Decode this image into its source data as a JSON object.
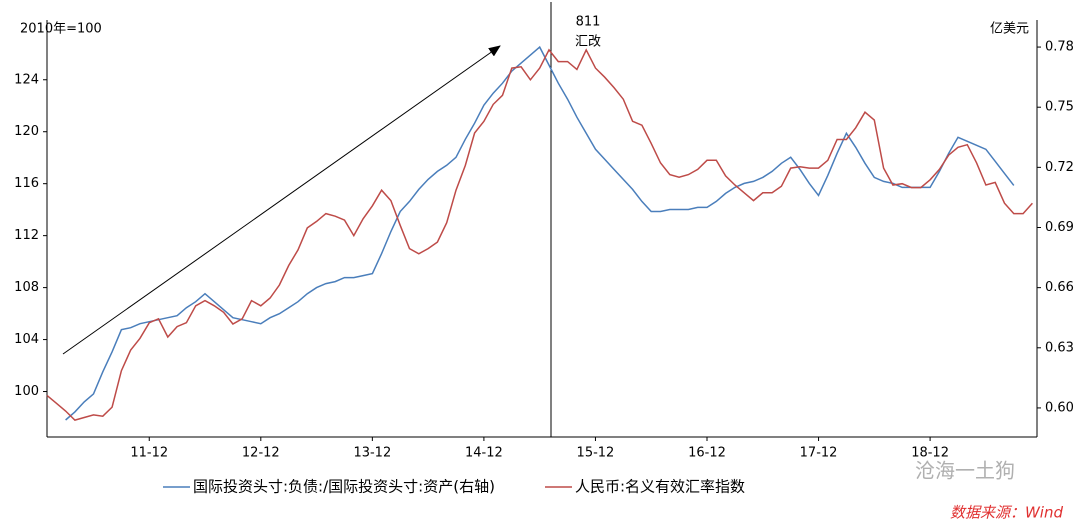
{
  "chart_data": {
    "type": "line",
    "y_label": "2010年=100",
    "y2_label": "亿美元",
    "annotation": {
      "text": "811",
      "subtext": "汇改"
    },
    "categories": [
      null,
      null,
      null,
      null,
      null,
      null,
      null,
      null,
      null,
      null,
      null,
      "11-12",
      null,
      null,
      null,
      null,
      null,
      null,
      null,
      null,
      null,
      null,
      null,
      "12-12",
      null,
      null,
      null,
      null,
      null,
      null,
      null,
      null,
      null,
      null,
      null,
      "13-12",
      null,
      null,
      null,
      null,
      null,
      null,
      null,
      null,
      null,
      null,
      null,
      "14-12",
      null,
      null,
      null,
      null,
      null,
      null,
      null,
      null,
      null,
      null,
      null,
      "15-12",
      null,
      null,
      null,
      null,
      null,
      null,
      null,
      null,
      null,
      null,
      null,
      "16-12",
      null,
      null,
      null,
      null,
      null,
      null,
      null,
      null,
      null,
      null,
      null,
      "17-12",
      null,
      null,
      null,
      null,
      null,
      null,
      null,
      null,
      null,
      null,
      null,
      "18-12",
      null,
      null,
      null,
      null,
      null,
      null,
      null,
      null,
      null,
      null,
      null
    ],
    "series": [
      {
        "name": "国际投资头寸:负债:/国际投资头寸:资产(右轴)",
        "color": "#4a7ebb",
        "axis": "y2",
        "values": [
          null,
          null,
          0.594,
          0.598,
          0.603,
          0.607,
          0.618,
          0.628,
          0.639,
          0.64,
          0.642,
          0.643,
          0.644,
          0.645,
          0.646,
          0.65,
          0.653,
          0.657,
          0.653,
          0.649,
          0.645,
          0.644,
          0.643,
          0.642,
          0.645,
          0.647,
          0.65,
          0.653,
          0.657,
          0.66,
          0.662,
          0.663,
          0.665,
          0.665,
          0.666,
          0.667,
          0.677,
          0.688,
          0.698,
          0.703,
          0.709,
          0.714,
          0.718,
          0.721,
          0.725,
          0.734,
          0.742,
          0.751,
          0.757,
          0.762,
          0.768,
          0.772,
          0.776,
          0.78,
          0.771,
          0.762,
          0.754,
          0.745,
          0.737,
          0.729,
          0.724,
          0.719,
          0.714,
          0.709,
          0.703,
          0.698,
          0.698,
          0.699,
          0.699,
          0.699,
          0.7,
          0.7,
          0.703,
          0.707,
          0.71,
          0.712,
          0.713,
          0.715,
          0.718,
          0.722,
          0.725,
          0.719,
          0.712,
          0.706,
          0.716,
          0.727,
          0.737,
          0.73,
          0.722,
          0.715,
          0.713,
          0.712,
          0.71,
          0.71,
          0.71,
          0.71,
          0.718,
          0.727,
          0.735,
          0.733,
          0.731,
          0.729,
          0.723,
          0.717,
          0.711,
          null,
          null
        ]
      },
      {
        "name": "人民币:名义有效汇率指数",
        "color": "#be4b48",
        "values": [
          99.7,
          99.1,
          98.5,
          97.8,
          98.0,
          98.2,
          98.1,
          98.8,
          101.6,
          103.2,
          104.1,
          105.3,
          105.6,
          104.2,
          105.0,
          105.3,
          106.6,
          107.0,
          106.6,
          106.1,
          105.2,
          105.6,
          107.0,
          106.6,
          107.2,
          108.2,
          109.7,
          110.9,
          112.6,
          113.1,
          113.7,
          113.5,
          113.2,
          112.0,
          113.3,
          114.3,
          115.5,
          114.7,
          112.8,
          111.0,
          110.6,
          111.0,
          111.5,
          113.0,
          115.5,
          117.4,
          119.9,
          120.8,
          122.1,
          122.8,
          124.9,
          125.0,
          124.0,
          124.9,
          126.3,
          125.4,
          125.4,
          124.8,
          126.3,
          124.9,
          124.2,
          123.4,
          122.5,
          120.8,
          120.5,
          119.1,
          117.6,
          116.7,
          116.5,
          116.7,
          117.1,
          117.8,
          117.8,
          116.6,
          115.9,
          115.3,
          114.7,
          115.3,
          115.3,
          115.8,
          117.2,
          117.3,
          117.2,
          117.2,
          117.8,
          119.4,
          119.4,
          120.3,
          121.5,
          120.9,
          117.2,
          115.9,
          116.0,
          115.7,
          115.7,
          116.3,
          117.1,
          118.2,
          118.8,
          119.0,
          117.6,
          115.9,
          116.1,
          114.5,
          113.7,
          113.7,
          114.5
        ]
      }
    ],
    "ylim": [
      96.5,
      128.6
    ],
    "yticks": [
      100,
      104,
      108,
      112,
      116,
      120,
      124
    ],
    "y2lim": [
      0.5855,
      0.7935
    ],
    "y2ticks": [
      {
        "value": 0.6,
        "label": "0.60"
      },
      0.63,
      0.66,
      0.69,
      0.72,
      0.75,
      0.78
    ],
    "grid": false,
    "legend": "bottom",
    "watermark": "沧海一土狗",
    "source": "数据来源：Wind"
  }
}
